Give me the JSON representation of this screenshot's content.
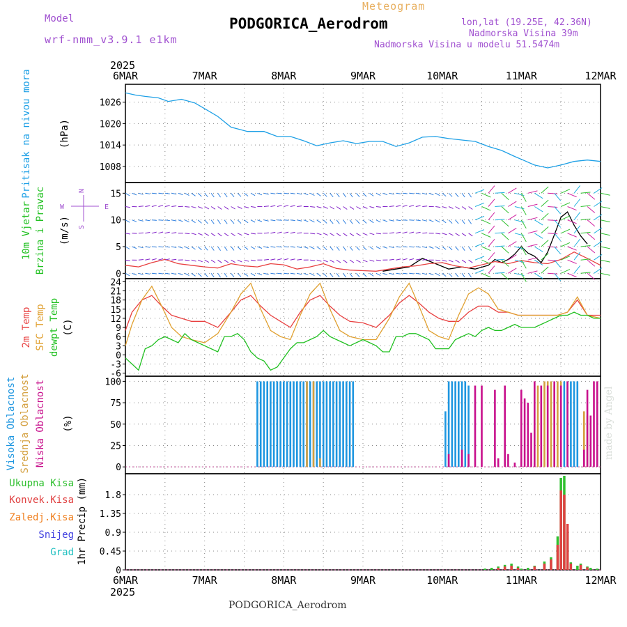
{
  "header": {
    "model_label": "Model",
    "model_value": "wrf-nmm_v3.9.1 e1km",
    "product": "Meteogram",
    "station_title": "PODGORICA_Aerodrom",
    "lonlat": "lon,lat (19.25E, 42.36N)",
    "altitude": "Nadmorska Visina 39m",
    "model_altitude": "Nadmorska Visina u modelu 51.5474m",
    "footer_station": "PODGORICA_Aerodrom",
    "watermark": "made by Angel"
  },
  "time_axis": {
    "year": "2025",
    "dates": [
      "6MAR",
      "7MAR",
      "8MAR",
      "9MAR",
      "10MAR",
      "11MAR",
      "12MAR"
    ]
  },
  "colors": {
    "pressure": "#1ea0e6",
    "temp2m": "#e84040",
    "sfc_temp": "#e0a030",
    "dewpoint": "#20c020",
    "high_cloud": "#1e96e0",
    "mid_cloud": "#d4a040",
    "low_cloud": "#c8108c",
    "total_rain": "#30c030",
    "conv_rain": "#e04040",
    "freezing_rain": "#f08020",
    "snow": "#4040e0",
    "hail": "#20c0c0",
    "purple_label": "#a050d0",
    "orange_label": "#e8b060"
  },
  "labels": {
    "pressure": [
      "Pritisak na nivou mora",
      "(hPa)"
    ],
    "wind": [
      "10m Vjetar",
      "Brzina i Pravac",
      "(m/s)"
    ],
    "compass": {
      "n": "N",
      "s": "S",
      "w": "W",
      "e": "E"
    },
    "temperature": [
      "2m Temp",
      "SFC Temp",
      "dewpt Temp",
      "(C)"
    ],
    "cloud": [
      "Visoka Oblacnost",
      "Srednja Oblacnost",
      "Niska Oblacnost",
      "(%)"
    ],
    "precip_legend": [
      "Ukupna Kisa",
      "Konvek.Kisa",
      "Zaledj.Kisa",
      "Snijeg",
      "Grad"
    ],
    "precip_axis": "1hr Precip (mm)"
  },
  "chart_data": [
    {
      "type": "line",
      "name": "pressure",
      "ylabel": "(hPa)",
      "ylim": [
        1003.5,
        1031
      ],
      "yticks": [
        1008,
        1014,
        1020,
        1026
      ],
      "xlim": [
        0,
        144
      ],
      "series": [
        {
          "name": "Pritisak na nivou mora",
          "color": "#1ea0e6",
          "x": [
            0,
            3,
            6,
            10,
            13,
            17,
            21,
            24,
            28,
            32,
            37,
            42,
            46,
            50,
            54,
            58,
            62,
            66,
            70,
            74,
            78,
            82,
            86,
            90,
            94,
            98,
            102,
            106,
            110,
            114,
            118,
            121,
            124,
            128,
            132,
            136,
            140,
            144
          ],
          "y": [
            1028.6,
            1028.0,
            1027.6,
            1027.2,
            1026.2,
            1026.8,
            1025.8,
            1024.2,
            1022.0,
            1019.0,
            1017.8,
            1017.8,
            1016.4,
            1016.4,
            1015.2,
            1013.8,
            1014.6,
            1015.2,
            1014.4,
            1015.0,
            1015.0,
            1013.6,
            1014.6,
            1016.2,
            1016.4,
            1015.8,
            1015.4,
            1015.0,
            1013.6,
            1012.5,
            1010.8,
            1009.6,
            1008.4,
            1007.6,
            1008.4,
            1009.4,
            1009.8,
            1009.4
          ]
        }
      ]
    },
    {
      "type": "line",
      "name": "wind_speed",
      "ylabel": "(m/s)",
      "ylim": [
        -1,
        17
      ],
      "yticks": [
        0,
        5,
        10,
        15
      ],
      "xlim": [
        0,
        144
      ],
      "series": [
        {
          "name": "speed",
          "color": "#000000",
          "x": [
            78,
            82,
            86,
            90,
            94,
            98,
            102,
            106,
            110,
            112,
            114,
            116,
            118,
            120,
            122,
            124,
            126,
            128,
            130,
            132,
            134,
            136,
            138,
            140
          ],
          "y": [
            0.4,
            0.8,
            1.2,
            2.8,
            1.8,
            0.8,
            1.2,
            0.8,
            1.5,
            2.6,
            2.0,
            2.6,
            3.6,
            5.0,
            3.8,
            3.2,
            2.0,
            4.0,
            7.2,
            10.5,
            11.5,
            9.0,
            7.0,
            5.5
          ]
        },
        {
          "name": "gust",
          "color": "#e84040",
          "x": [
            0,
            4,
            8,
            12,
            16,
            20,
            24,
            28,
            32,
            36,
            40,
            44,
            48,
            52,
            56,
            60,
            64,
            68,
            72,
            76,
            80,
            84,
            88,
            92,
            96,
            100,
            104,
            108,
            112,
            116,
            120,
            124,
            128,
            132,
            136,
            140,
            144
          ],
          "y": [
            1.5,
            1.2,
            2.0,
            2.6,
            1.8,
            1.5,
            1.2,
            1.0,
            1.8,
            1.4,
            1.2,
            1.8,
            1.6,
            0.8,
            1.2,
            1.8,
            0.9,
            0.6,
            0.5,
            0.4,
            0.8,
            1.2,
            1.4,
            1.8,
            2.0,
            1.4,
            1.0,
            1.6,
            2.2,
            1.8,
            2.4,
            2.0,
            1.8,
            2.6,
            4.0,
            2.8,
            1.5
          ]
        }
      ]
    },
    {
      "type": "line",
      "name": "temperature",
      "ylabel": "(C)",
      "ylim": [
        -7,
        25
      ],
      "yticks": [
        -6,
        -3,
        0,
        3,
        6,
        9,
        12,
        15,
        18,
        21,
        24
      ],
      "xlim": [
        0,
        144
      ],
      "series": [
        {
          "name": "2m Temp",
          "color": "#e84040",
          "x": [
            0,
            2,
            5,
            8,
            11,
            14,
            17,
            20,
            24,
            28,
            32,
            35,
            38,
            41,
            44,
            47,
            50,
            53,
            56,
            59,
            62,
            65,
            68,
            72,
            76,
            80,
            83,
            86,
            89,
            92,
            95,
            98,
            101,
            104,
            107,
            110,
            113,
            116,
            119,
            122,
            125,
            128,
            131,
            134,
            137,
            140,
            144
          ],
          "y": [
            8,
            14,
            18,
            19.5,
            16,
            13,
            12,
            11,
            11,
            9,
            14,
            18,
            19.5,
            16,
            13,
            11,
            9,
            14,
            18,
            19.5,
            16,
            13,
            11,
            10.5,
            9,
            13,
            17,
            19.5,
            17,
            14,
            12,
            11,
            11,
            14,
            16,
            16,
            14,
            14,
            13,
            13,
            13,
            13,
            13,
            14,
            18,
            13,
            13
          ]
        },
        {
          "name": "SFC Temp",
          "color": "#e0a030",
          "x": [
            0,
            2,
            5,
            8,
            11,
            14,
            17,
            20,
            24,
            28,
            32,
            35,
            38,
            41,
            44,
            47,
            50,
            53,
            56,
            59,
            62,
            65,
            68,
            72,
            76,
            80,
            83,
            86,
            89,
            92,
            95,
            98,
            101,
            104,
            107,
            110,
            113,
            116,
            119,
            122,
            125,
            128,
            131,
            134,
            137,
            140,
            144
          ],
          "y": [
            3,
            10,
            18,
            22.5,
            16,
            9,
            6,
            5,
            4,
            7,
            14,
            20,
            23.5,
            15,
            8,
            6,
            5,
            13,
            20,
            23.5,
            15,
            8,
            6,
            5,
            5,
            12,
            19,
            23.5,
            16,
            8,
            6,
            5,
            13,
            20,
            22,
            20,
            15,
            14,
            13,
            13,
            13,
            13,
            13,
            14,
            19,
            13,
            12
          ]
        },
        {
          "name": "dewpt Temp",
          "color": "#20c020",
          "x": [
            0,
            2,
            4,
            6,
            8,
            10,
            12,
            14,
            16,
            18,
            20,
            22,
            24,
            26,
            28,
            30,
            32,
            34,
            36,
            38,
            40,
            42,
            44,
            46,
            48,
            50,
            52,
            54,
            56,
            58,
            60,
            62,
            64,
            66,
            68,
            70,
            72,
            74,
            76,
            78,
            80,
            82,
            84,
            86,
            88,
            90,
            92,
            94,
            96,
            98,
            100,
            102,
            104,
            106,
            108,
            110,
            112,
            114,
            116,
            118,
            120,
            122,
            124,
            126,
            128,
            130,
            132,
            134,
            136,
            138,
            140,
            142,
            144
          ],
          "y": [
            -1,
            -3,
            -5,
            2,
            3,
            5,
            6,
            5,
            4,
            7,
            5,
            4,
            3,
            2,
            1,
            6,
            6,
            7,
            5,
            1,
            -1,
            -2,
            -5,
            -4,
            -1,
            2,
            4,
            4,
            5,
            6,
            8,
            6,
            5,
            4,
            3,
            4,
            5,
            4,
            3,
            1,
            1,
            6,
            6,
            7,
            7,
            6,
            5,
            2,
            2,
            2,
            5,
            6,
            7,
            6,
            8,
            9,
            8,
            8,
            9,
            10,
            9,
            9,
            9,
            10,
            11,
            12,
            13,
            13,
            14,
            13,
            13,
            12,
            12
          ]
        }
      ]
    },
    {
      "type": "bar",
      "name": "cloud_cover",
      "ylabel": "(%)",
      "ylim": [
        -8,
        106
      ],
      "yticks": [
        0,
        25,
        50,
        75,
        100
      ],
      "xlim": [
        0,
        144
      ],
      "series": [
        {
          "name": "Visoka Oblacnost",
          "color": "#1e96e0",
          "x": [
            40,
            41,
            42,
            43,
            44,
            45,
            46,
            47,
            48,
            49,
            50,
            51,
            52,
            53,
            54,
            55,
            56,
            57,
            58,
            59,
            60,
            61,
            62,
            63,
            64,
            65,
            66,
            67,
            68,
            69,
            97,
            98,
            99,
            100,
            101,
            102,
            103,
            104,
            133,
            134,
            135,
            136,
            137
          ],
          "values": [
            100,
            100,
            100,
            100,
            100,
            100,
            100,
            100,
            100,
            100,
            100,
            100,
            100,
            100,
            100,
            100,
            100,
            100,
            100,
            100,
            100,
            100,
            100,
            100,
            100,
            100,
            100,
            100,
            100,
            100,
            65,
            100,
            100,
            100,
            100,
            100,
            100,
            95,
            100,
            100,
            100,
            100,
            100
          ]
        },
        {
          "name": "Srednja Oblacnost",
          "color": "#d4a040",
          "x": [
            55,
            57,
            59,
            124,
            125,
            126,
            127,
            128,
            129,
            130,
            131,
            132,
            139,
            140
          ],
          "values": [
            100,
            100,
            10,
            100,
            95,
            95,
            100,
            100,
            100,
            95,
            100,
            100,
            65,
            60
          ]
        },
        {
          "name": "Niska Oblacnost",
          "color": "#c8108c",
          "x": [
            98,
            102,
            104,
            106,
            108,
            112,
            113,
            115,
            116,
            118,
            120,
            121,
            122,
            123,
            124,
            126,
            128,
            130,
            132,
            134,
            139,
            140,
            141,
            142,
            143
          ],
          "values": [
            15,
            20,
            15,
            95,
            95,
            90,
            10,
            95,
            15,
            5,
            90,
            80,
            75,
            40,
            100,
            95,
            95,
            100,
            95,
            100,
            20,
            90,
            60,
            100,
            100
          ]
        }
      ]
    },
    {
      "type": "bar",
      "name": "precipitation",
      "ylabel": "1hr Precip (mm)",
      "ylim": [
        0,
        2.3
      ],
      "yticks": [
        0,
        0.45,
        0.9,
        1.35,
        1.8
      ],
      "xlim": [
        0,
        144
      ],
      "series": [
        {
          "name": "Ukupna Kisa",
          "color": "#30c030",
          "x": [
            109,
            111,
            113,
            115,
            117,
            119,
            120,
            122,
            124,
            127,
            129,
            131,
            132,
            133,
            134,
            135,
            137,
            138,
            140,
            141,
            143
          ],
          "values": [
            0.03,
            0.05,
            0.08,
            0.12,
            0.15,
            0.08,
            0.03,
            0.05,
            0.1,
            0.2,
            0.3,
            0.8,
            2.2,
            2.25,
            0.9,
            0.18,
            0.1,
            0.15,
            0.08,
            0.05,
            0.03
          ]
        },
        {
          "name": "Konvek.Kisa",
          "color": "#e04040",
          "x": [
            113,
            115,
            117,
            119,
            124,
            127,
            129,
            131,
            132,
            133,
            134,
            135,
            138,
            140
          ],
          "values": [
            0.05,
            0.08,
            0.1,
            0.05,
            0.08,
            0.15,
            0.25,
            0.6,
            1.9,
            1.8,
            1.1,
            0.15,
            0.12,
            0.06
          ]
        }
      ]
    }
  ]
}
